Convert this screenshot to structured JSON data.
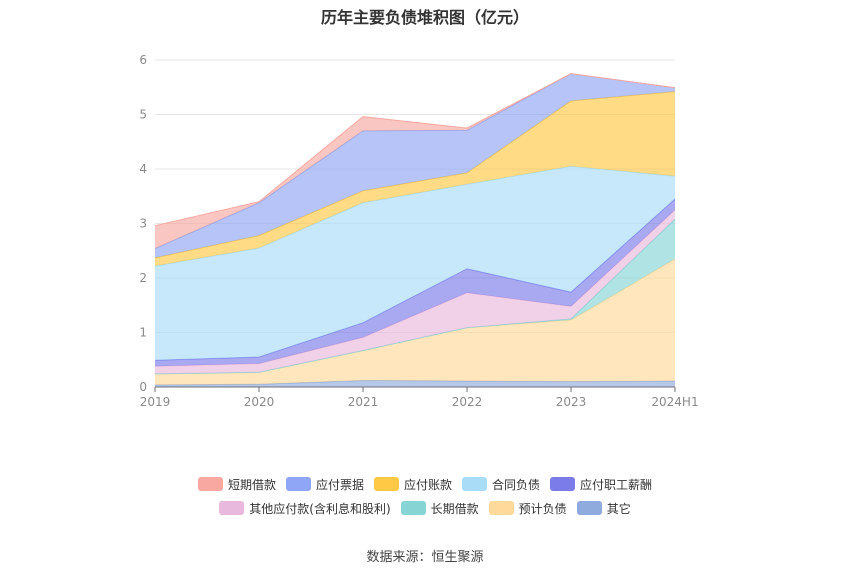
{
  "chart_data": {
    "type": "area",
    "stacked": true,
    "title": "历年主要负债堆积图（亿元）",
    "categories": [
      "2019",
      "2020",
      "2021",
      "2022",
      "2023",
      "2024H1"
    ],
    "ylim": [
      0,
      6
    ],
    "yticks": [
      "0",
      "1",
      "2",
      "3",
      "4",
      "5",
      "6"
    ],
    "grid": true,
    "legend_position": "bottom",
    "series": [
      {
        "name": "其它",
        "color": "#8faadc",
        "values": [
          0.04,
          0.05,
          0.12,
          0.11,
          0.1,
          0.11
        ]
      },
      {
        "name": "预计负债",
        "color": "#ffd99a",
        "values": [
          0.2,
          0.22,
          0.55,
          0.98,
          1.13,
          2.24
        ]
      },
      {
        "name": "长期借款",
        "color": "#86d4d4",
        "values": [
          0.0,
          0.0,
          0.0,
          0.0,
          0.02,
          0.73
        ]
      },
      {
        "name": "其他应付款(含利息和股利)",
        "color": "#e8b9dc",
        "values": [
          0.14,
          0.16,
          0.24,
          0.64,
          0.23,
          0.17
        ]
      },
      {
        "name": "应付职工薪酬",
        "color": "#7b7bea",
        "values": [
          0.11,
          0.12,
          0.27,
          0.44,
          0.26,
          0.2
        ]
      },
      {
        "name": "合同负债",
        "color": "#a8dcf7",
        "values": [
          1.73,
          2.0,
          2.2,
          1.55,
          2.31,
          0.42
        ]
      },
      {
        "name": "应付账款",
        "color": "#ffc845",
        "values": [
          0.15,
          0.23,
          0.22,
          0.21,
          1.2,
          1.55
        ]
      },
      {
        "name": "应付票据",
        "color": "#8fa5f5",
        "values": [
          0.17,
          0.6,
          1.1,
          0.78,
          0.5,
          0.07
        ]
      },
      {
        "name": "短期借款",
        "color": "#f8a8a0",
        "values": [
          0.42,
          0.02,
          0.26,
          0.04,
          0.0,
          0.0
        ]
      }
    ],
    "legend_order": [
      "短期借款",
      "应付票据",
      "应付账款",
      "合同负债",
      "应付职工薪酬",
      "其他应付款(含利息和股利)",
      "长期借款",
      "预计负债",
      "其它"
    ],
    "source": "数据来源：恒生聚源"
  }
}
